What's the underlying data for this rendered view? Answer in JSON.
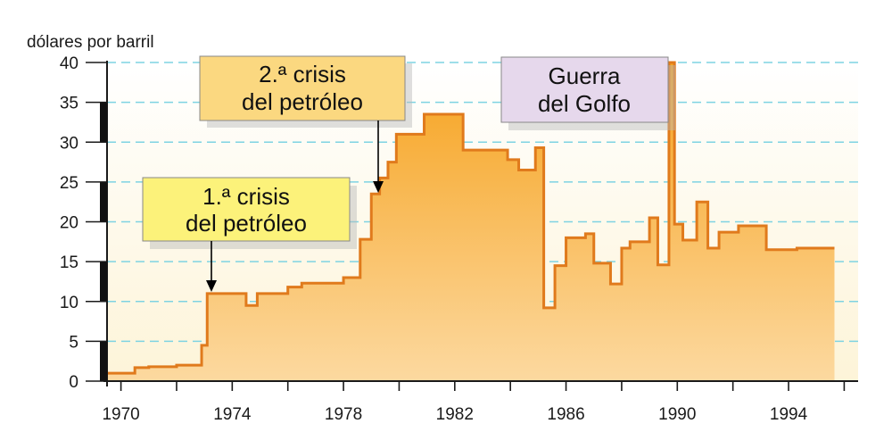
{
  "chart_data": {
    "type": "area",
    "ylabel": "dólares por barril",
    "xlabel": "",
    "ylim": [
      0,
      40
    ],
    "xlim": [
      1969.5,
      1996.5
    ],
    "yticks": [
      0,
      5,
      10,
      15,
      20,
      25,
      30,
      35,
      40
    ],
    "xticks": [
      1970,
      1974,
      1978,
      1982,
      1986,
      1990,
      1994
    ],
    "grid": true,
    "series": [
      {
        "step": true,
        "x": [
          1969.5,
          1970.5,
          1971,
          1972,
          1972.9,
          1973.1,
          1974.5,
          1974.9,
          1976,
          1976.5,
          1978,
          1978.6,
          1979,
          1979.3,
          1979.6,
          1979.9,
          1980.2,
          1980.9,
          1982.3,
          1983.6,
          1983.9,
          1984.3,
          1984.9,
          1985.2,
          1985.6,
          1986,
          1986.7,
          1987,
          1987.6,
          1988,
          1988.3,
          1989,
          1989.3,
          1989.7,
          1989.9,
          1990.2,
          1990.7,
          1991.1,
          1991.5,
          1992.2,
          1993.2,
          1994.3,
          1995.3
        ],
        "y": [
          1,
          1.7,
          1.8,
          2,
          4.5,
          11,
          9.5,
          11,
          11.8,
          12.3,
          13,
          17.8,
          23.5,
          25.5,
          27.5,
          31,
          31,
          33.5,
          29,
          29,
          27.8,
          26.5,
          29.3,
          9.2,
          14.5,
          18,
          18.5,
          14.8,
          12.2,
          16.7,
          17.5,
          20.5,
          14.6,
          40,
          19.7,
          17.7,
          22.5,
          16.7,
          18.7,
          19.5,
          16.5,
          16.7,
          16.7
        ]
      }
    ],
    "annotations": [
      {
        "text_lines": [
          "1.ª crisis",
          "del petróleo"
        ],
        "x": 1973,
        "y": 11,
        "style": "yellow"
      },
      {
        "text_lines": [
          "2.ª crisis",
          "del petróleo"
        ],
        "x": 1979,
        "y": 23.5,
        "style": "light-orange"
      },
      {
        "text_lines": [
          "Guerra",
          "del Golfo"
        ],
        "style": "lilac"
      }
    ]
  },
  "colors": {
    "area_top": "#f6a21e",
    "area_bottom": "#fcd9a0",
    "area_outline": "#e07a1c",
    "grid": "#7ed3e2",
    "note_yellow": "#fcf27a",
    "note_orange": "#fbd880",
    "note_lilac": "#e6d8ec",
    "plot_bg_bottom": "#fdf4d8"
  }
}
